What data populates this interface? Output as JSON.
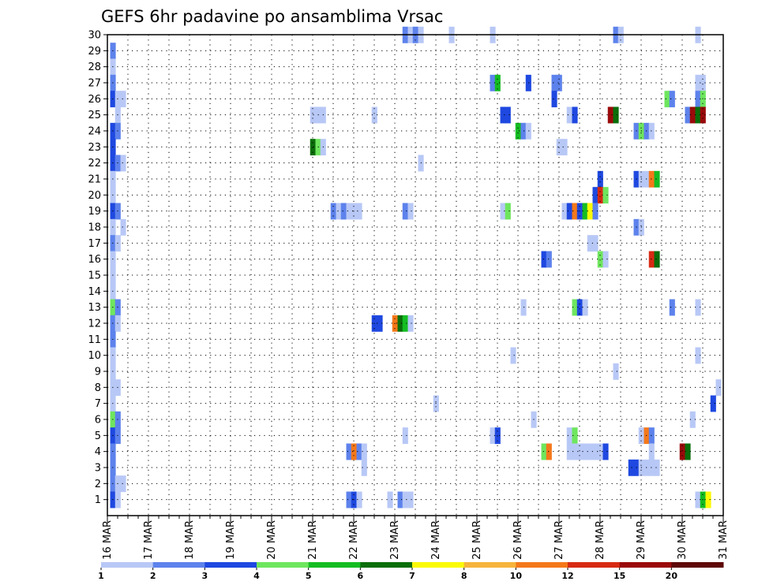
{
  "chart_data": {
    "type": "heatmap",
    "title": "GEFS 6hr padavine po ansamblima Vrsac",
    "xlabel": "",
    "ylabel": "",
    "y_rows": [
      "1",
      "2",
      "3",
      "4",
      "5",
      "6",
      "7",
      "8",
      "9",
      "10",
      "11",
      "12",
      "13",
      "14",
      "15",
      "16",
      "17",
      "18",
      "19",
      "20",
      "21",
      "22",
      "23",
      "24",
      "25",
      "26",
      "27",
      "28",
      "29",
      "30"
    ],
    "x_tick_labels": [
      "16 MAR",
      "17 MAR",
      "18 MAR",
      "19 MAR",
      "20 MAR",
      "21 MAR",
      "22 MAR",
      "23 MAR",
      "24 MAR",
      "25 MAR",
      "26 MAR",
      "27 MAR",
      "28 MAR",
      "29 MAR",
      "30 MAR",
      "31 MAR"
    ],
    "time_step": "6hr",
    "grid": "dotted",
    "legend": {
      "placement": "bottom",
      "labels": [
        "1",
        "2",
        "3",
        "4",
        "5",
        "6",
        "7",
        "8",
        "10",
        "12",
        "15",
        "20"
      ],
      "colors": [
        "#b8c8f6",
        "#5d82ec",
        "#1e48e0",
        "#6ee65e",
        "#14bd22",
        "#0a6e0a",
        "#fafa06",
        "#f6b43c",
        "#f4781a",
        "#d72a14",
        "#9a0a0a",
        "#5e0808"
      ]
    },
    "cells": [
      {
        "member": 30,
        "day": 23.25,
        "v": 2
      },
      {
        "member": 30,
        "day": 23.38,
        "v": 1
      },
      {
        "member": 30,
        "day": 23.5,
        "v": 2
      },
      {
        "member": 30,
        "day": 23.63,
        "v": 1
      },
      {
        "member": 30,
        "day": 24.38,
        "v": 1
      },
      {
        "member": 30,
        "day": 25.38,
        "v": 1
      },
      {
        "member": 30,
        "day": 28.38,
        "v": 2
      },
      {
        "member": 30,
        "day": 28.5,
        "v": 1
      },
      {
        "member": 30,
        "day": 30.38,
        "v": 1
      },
      {
        "member": 29,
        "day": 16.13,
        "v": 2
      },
      {
        "member": 28,
        "day": 16.13,
        "v": 1
      },
      {
        "member": 27,
        "day": 16.13,
        "v": 2
      },
      {
        "member": 27,
        "day": 25.38,
        "v": 2
      },
      {
        "member": 27,
        "day": 25.5,
        "v": 5
      },
      {
        "member": 27,
        "day": 26.25,
        "v": 3
      },
      {
        "member": 27,
        "day": 26.88,
        "v": 2
      },
      {
        "member": 27,
        "day": 27,
        "v": 2
      },
      {
        "member": 27,
        "day": 30.38,
        "v": 1
      },
      {
        "member": 27,
        "day": 30.5,
        "v": 1
      },
      {
        "member": 26,
        "day": 16.13,
        "v": 3
      },
      {
        "member": 26,
        "day": 16.25,
        "v": 1
      },
      {
        "member": 26,
        "day": 16.38,
        "v": 1
      },
      {
        "member": 26,
        "day": 26.88,
        "v": 3
      },
      {
        "member": 26,
        "day": 29.63,
        "v": 4
      },
      {
        "member": 26,
        "day": 29.75,
        "v": 2
      },
      {
        "member": 26,
        "day": 30.38,
        "v": 2
      },
      {
        "member": 26,
        "day": 30.5,
        "v": 4
      },
      {
        "member": 25,
        "day": 16.25,
        "v": 1
      },
      {
        "member": 25,
        "day": 21,
        "v": 1
      },
      {
        "member": 25,
        "day": 21.13,
        "v": 1
      },
      {
        "member": 25,
        "day": 21.25,
        "v": 1
      },
      {
        "member": 25,
        "day": 22.5,
        "v": 1
      },
      {
        "member": 25,
        "day": 25.63,
        "v": 3
      },
      {
        "member": 25,
        "day": 25.75,
        "v": 3
      },
      {
        "member": 25,
        "day": 27.25,
        "v": 1
      },
      {
        "member": 25,
        "day": 27.38,
        "v": 3
      },
      {
        "member": 25,
        "day": 28.25,
        "v": 15
      },
      {
        "member": 25,
        "day": 28.38,
        "v": 6
      },
      {
        "member": 25,
        "day": 30.13,
        "v": 2
      },
      {
        "member": 25,
        "day": 30.25,
        "v": 15
      },
      {
        "member": 25,
        "day": 30.38,
        "v": 6
      },
      {
        "member": 25,
        "day": 30.5,
        "v": 15
      },
      {
        "member": 24,
        "day": 16.13,
        "v": 3
      },
      {
        "member": 24,
        "day": 16.25,
        "v": 2
      },
      {
        "member": 24,
        "day": 26,
        "v": 5
      },
      {
        "member": 24,
        "day": 26.13,
        "v": 2
      },
      {
        "member": 24,
        "day": 26.25,
        "v": 1
      },
      {
        "member": 24,
        "day": 28.88,
        "v": 2
      },
      {
        "member": 24,
        "day": 29,
        "v": 4
      },
      {
        "member": 24,
        "day": 29.13,
        "v": 2
      },
      {
        "member": 24,
        "day": 29.25,
        "v": 1
      },
      {
        "member": 23,
        "day": 16.13,
        "v": 3
      },
      {
        "member": 23,
        "day": 21,
        "v": 6
      },
      {
        "member": 23,
        "day": 21.13,
        "v": 4
      },
      {
        "member": 23,
        "day": 21.25,
        "v": 1
      },
      {
        "member": 23,
        "day": 27,
        "v": 1
      },
      {
        "member": 23,
        "day": 27.13,
        "v": 1
      },
      {
        "member": 22,
        "day": 16.13,
        "v": 3
      },
      {
        "member": 22,
        "day": 16.25,
        "v": 2
      },
      {
        "member": 22,
        "day": 16.38,
        "v": 1
      },
      {
        "member": 22,
        "day": 23.63,
        "v": 1
      },
      {
        "member": 21,
        "day": 16.13,
        "v": 1
      },
      {
        "member": 21,
        "day": 28,
        "v": 3
      },
      {
        "member": 21,
        "day": 28.88,
        "v": 3
      },
      {
        "member": 21,
        "day": 29,
        "v": 1
      },
      {
        "member": 21,
        "day": 29.13,
        "v": 1
      },
      {
        "member": 21,
        "day": 29.25,
        "v": 10
      },
      {
        "member": 21,
        "day": 29.38,
        "v": 5
      },
      {
        "member": 20,
        "day": 16.13,
        "v": 1
      },
      {
        "member": 20,
        "day": 27.88,
        "v": 3
      },
      {
        "member": 20,
        "day": 28,
        "v": 12
      },
      {
        "member": 20,
        "day": 28.13,
        "v": 4
      },
      {
        "member": 19,
        "day": 16.13,
        "v": 3
      },
      {
        "member": 19,
        "day": 16.25,
        "v": 2
      },
      {
        "member": 19,
        "day": 21.5,
        "v": 2
      },
      {
        "member": 19,
        "day": 21.63,
        "v": 1
      },
      {
        "member": 19,
        "day": 21.75,
        "v": 2
      },
      {
        "member": 19,
        "day": 21.88,
        "v": 1
      },
      {
        "member": 19,
        "day": 22,
        "v": 1
      },
      {
        "member": 19,
        "day": 22.13,
        "v": 1
      },
      {
        "member": 19,
        "day": 23.25,
        "v": 2
      },
      {
        "member": 19,
        "day": 23.38,
        "v": 1
      },
      {
        "member": 19,
        "day": 25.63,
        "v": 1
      },
      {
        "member": 19,
        "day": 25.75,
        "v": 4
      },
      {
        "member": 19,
        "day": 27.13,
        "v": 1
      },
      {
        "member": 19,
        "day": 27.25,
        "v": 3
      },
      {
        "member": 19,
        "day": 27.38,
        "v": 10
      },
      {
        "member": 19,
        "day": 27.5,
        "v": 3
      },
      {
        "member": 19,
        "day": 27.63,
        "v": 5
      },
      {
        "member": 19,
        "day": 27.75,
        "v": 7
      },
      {
        "member": 19,
        "day": 27.88,
        "v": 2
      },
      {
        "member": 18,
        "day": 16.13,
        "v": 1
      },
      {
        "member": 18,
        "day": 16.38,
        "v": 1
      },
      {
        "member": 18,
        "day": 28.88,
        "v": 2
      },
      {
        "member": 18,
        "day": 29,
        "v": 1
      },
      {
        "member": 17,
        "day": 16.13,
        "v": 2
      },
      {
        "member": 17,
        "day": 16.25,
        "v": 1
      },
      {
        "member": 17,
        "day": 27.75,
        "v": 1
      },
      {
        "member": 17,
        "day": 27.88,
        "v": 1
      },
      {
        "member": 16,
        "day": 16.13,
        "v": 1
      },
      {
        "member": 16,
        "day": 26.63,
        "v": 3
      },
      {
        "member": 16,
        "day": 26.75,
        "v": 2
      },
      {
        "member": 16,
        "day": 28,
        "v": 4
      },
      {
        "member": 16,
        "day": 28.13,
        "v": 1
      },
      {
        "member": 16,
        "day": 29.25,
        "v": 12
      },
      {
        "member": 16,
        "day": 29.38,
        "v": 6
      },
      {
        "member": 15,
        "day": 16.13,
        "v": 1
      },
      {
        "member": 14,
        "day": 16.13,
        "v": 1
      },
      {
        "member": 13,
        "day": 16.13,
        "v": 4
      },
      {
        "member": 13,
        "day": 16.25,
        "v": 2
      },
      {
        "member": 13,
        "day": 26.13,
        "v": 1
      },
      {
        "member": 13,
        "day": 27.38,
        "v": 4
      },
      {
        "member": 13,
        "day": 27.5,
        "v": 3
      },
      {
        "member": 13,
        "day": 27.63,
        "v": 1
      },
      {
        "member": 13,
        "day": 29.75,
        "v": 2
      },
      {
        "member": 13,
        "day": 30.38,
        "v": 1
      },
      {
        "member": 12,
        "day": 16.13,
        "v": 2
      },
      {
        "member": 12,
        "day": 16.25,
        "v": 1
      },
      {
        "member": 12,
        "day": 22.5,
        "v": 3
      },
      {
        "member": 12,
        "day": 22.63,
        "v": 3
      },
      {
        "member": 12,
        "day": 23,
        "v": 10
      },
      {
        "member": 12,
        "day": 23.13,
        "v": 6
      },
      {
        "member": 12,
        "day": 23.25,
        "v": 5
      },
      {
        "member": 12,
        "day": 23.38,
        "v": 1
      },
      {
        "member": 11,
        "day": 16.13,
        "v": 2
      },
      {
        "member": 10,
        "day": 16.13,
        "v": 1
      },
      {
        "member": 10,
        "day": 25.88,
        "v": 1
      },
      {
        "member": 10,
        "day": 30.38,
        "v": 1
      },
      {
        "member": 9,
        "day": 16.13,
        "v": 1
      },
      {
        "member": 9,
        "day": 28.38,
        "v": 1
      },
      {
        "member": 8,
        "day": 16.13,
        "v": 1
      },
      {
        "member": 8,
        "day": 16.25,
        "v": 1
      },
      {
        "member": 8,
        "day": 30.88,
        "v": 1
      },
      {
        "member": 7,
        "day": 16.13,
        "v": 1
      },
      {
        "member": 7,
        "day": 24,
        "v": 1
      },
      {
        "member": 7,
        "day": 30.75,
        "v": 3
      },
      {
        "member": 6,
        "day": 16.13,
        "v": 4
      },
      {
        "member": 6,
        "day": 16.25,
        "v": 2
      },
      {
        "member": 6,
        "day": 26.38,
        "v": 1
      },
      {
        "member": 6,
        "day": 30.25,
        "v": 1
      },
      {
        "member": 5,
        "day": 16.13,
        "v": 3
      },
      {
        "member": 5,
        "day": 16.25,
        "v": 2
      },
      {
        "member": 5,
        "day": 23.25,
        "v": 1
      },
      {
        "member": 5,
        "day": 25.38,
        "v": 1
      },
      {
        "member": 5,
        "day": 25.5,
        "v": 3
      },
      {
        "member": 5,
        "day": 27.25,
        "v": 1
      },
      {
        "member": 5,
        "day": 27.38,
        "v": 4
      },
      {
        "member": 5,
        "day": 29,
        "v": 1
      },
      {
        "member": 5,
        "day": 29.13,
        "v": 10
      },
      {
        "member": 5,
        "day": 29.25,
        "v": 2
      },
      {
        "member": 4,
        "day": 16.13,
        "v": 2
      },
      {
        "member": 4,
        "day": 21.88,
        "v": 2
      },
      {
        "member": 4,
        "day": 22,
        "v": 10
      },
      {
        "member": 4,
        "day": 22.13,
        "v": 2
      },
      {
        "member": 4,
        "day": 22.25,
        "v": 1
      },
      {
        "member": 4,
        "day": 26.63,
        "v": 4
      },
      {
        "member": 4,
        "day": 26.75,
        "v": 10
      },
      {
        "member": 4,
        "day": 27.25,
        "v": 1
      },
      {
        "member": 4,
        "day": 27.38,
        "v": 1
      },
      {
        "member": 4,
        "day": 27.5,
        "v": 1
      },
      {
        "member": 4,
        "day": 27.63,
        "v": 1
      },
      {
        "member": 4,
        "day": 27.75,
        "v": 1
      },
      {
        "member": 4,
        "day": 27.88,
        "v": 1
      },
      {
        "member": 4,
        "day": 28,
        "v": 1
      },
      {
        "member": 4,
        "day": 28.13,
        "v": 3
      },
      {
        "member": 4,
        "day": 29.25,
        "v": 1
      },
      {
        "member": 4,
        "day": 30,
        "v": 15
      },
      {
        "member": 4,
        "day": 30.13,
        "v": 6
      },
      {
        "member": 3,
        "day": 16.13,
        "v": 2
      },
      {
        "member": 3,
        "day": 22.25,
        "v": 1
      },
      {
        "member": 3,
        "day": 28.75,
        "v": 3
      },
      {
        "member": 3,
        "day": 28.88,
        "v": 3
      },
      {
        "member": 3,
        "day": 29,
        "v": 1
      },
      {
        "member": 3,
        "day": 29.13,
        "v": 1
      },
      {
        "member": 3,
        "day": 29.25,
        "v": 1
      },
      {
        "member": 3,
        "day": 29.38,
        "v": 1
      },
      {
        "member": 2,
        "day": 16.13,
        "v": 2
      },
      {
        "member": 2,
        "day": 16.25,
        "v": 1
      },
      {
        "member": 2,
        "day": 16.38,
        "v": 1
      },
      {
        "member": 1,
        "day": 16.13,
        "v": 3
      },
      {
        "member": 1,
        "day": 16.25,
        "v": 1
      },
      {
        "member": 1,
        "day": 21.88,
        "v": 2
      },
      {
        "member": 1,
        "day": 22,
        "v": 3
      },
      {
        "member": 1,
        "day": 22.13,
        "v": 1
      },
      {
        "member": 1,
        "day": 22.88,
        "v": 1
      },
      {
        "member": 1,
        "day": 23.13,
        "v": 2
      },
      {
        "member": 1,
        "day": 23.25,
        "v": 1
      },
      {
        "member": 1,
        "day": 23.38,
        "v": 1
      },
      {
        "member": 1,
        "day": 30.38,
        "v": 1
      },
      {
        "member": 1,
        "day": 30.5,
        "v": 5
      },
      {
        "member": 1,
        "day": 30.63,
        "v": 7
      }
    ]
  }
}
